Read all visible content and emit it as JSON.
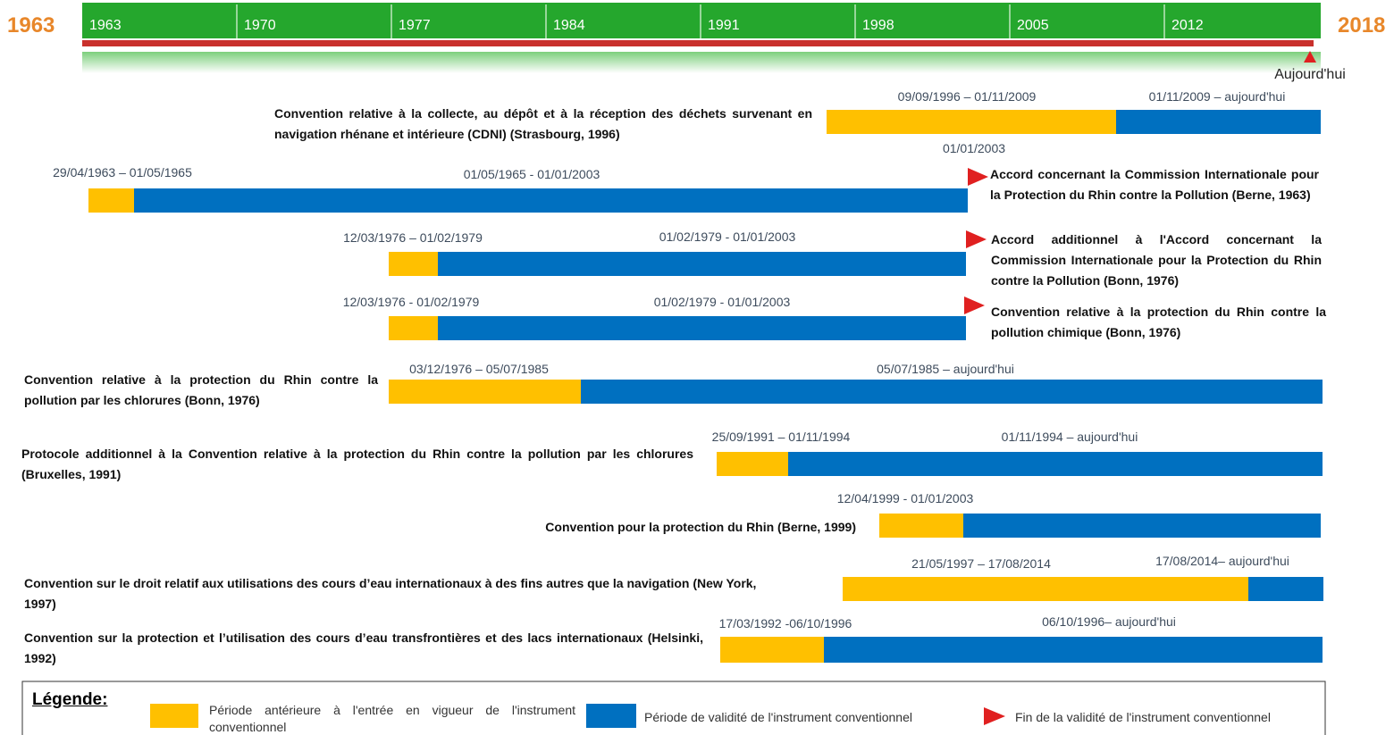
{
  "header": {
    "start_year": "1963",
    "end_year": "2018",
    "ticks": [
      "1963",
      "1970",
      "1977",
      "1984",
      "1991",
      "1998",
      "2005",
      "2012"
    ],
    "today": "Aujourd'hui"
  },
  "rows": [
    {
      "title": "Convention relative à la collecte, au dépôt et à la réception des déchets survenant en navigation rhénane et intérieure (CDNI) (Strasbourg, 1996)",
      "period_before": "09/09/1996 – 01/11/2009",
      "period_valid": "01/11/2009 – aujourd'hui"
    },
    {
      "title": "Accord concernant la Commission Internationale pour la Protection du Rhin contre la Pollution (Berne, 1963)",
      "period_before": "29/04/1963 – 01/05/1965",
      "period_valid": "01/05/1965 - 01/01/2003",
      "end_date": "01/01/2003"
    },
    {
      "title": "Accord additionnel à l'Accord concernant la Commission Internationale pour la Protection du Rhin contre la Pollution (Bonn, 1976)",
      "period_before": "12/03/1976 – 01/02/1979",
      "period_valid": "01/02/1979 - 01/01/2003"
    },
    {
      "title": "Convention relative à la protection du Rhin contre la pollution chimique (Bonn, 1976)",
      "period_before": "12/03/1976 - 01/02/1979",
      "period_valid": "01/02/1979 - 01/01/2003"
    },
    {
      "title": "Convention relative à la protection du Rhin contre la pollution par les chlorures (Bonn, 1976)",
      "period_before": "03/12/1976 – 05/07/1985",
      "period_valid": "05/07/1985 – aujourd'hui"
    },
    {
      "title": "Protocole additionnel à la Convention relative à la protection du Rhin contre la pollution par les chlorures (Bruxelles, 1991)",
      "period_before": "25/09/1991 – 01/11/1994",
      "period_valid": "01/11/1994 – aujourd'hui"
    },
    {
      "title": "Convention pour la protection du Rhin (Berne, 1999)",
      "period_before": "12/04/1999 - 01/01/2003"
    },
    {
      "title": "Convention sur le droit relatif aux utilisations des cours d’eau internationaux à des fins autres que la navigation (New York, 1997)",
      "period_before": "21/05/1997 – 17/08/2014",
      "period_valid": "17/08/2014– aujourd'hui"
    },
    {
      "title": "Convention sur la protection et l’utilisation des cours d’eau transfrontières et des lacs internationaux (Helsinki, 1992)",
      "period_before": "17/03/1992 -06/10/1996",
      "period_valid": "06/10/1996– aujourd'hui"
    }
  ],
  "legend": {
    "title": "Légende:",
    "before": "Période antérieure à l'entrée en vigueur de l'instrument conventionnel",
    "valid": "Période de validité de l'instrument conventionnel",
    "end": "Fin de la validité de l'instrument conventionnel"
  }
}
